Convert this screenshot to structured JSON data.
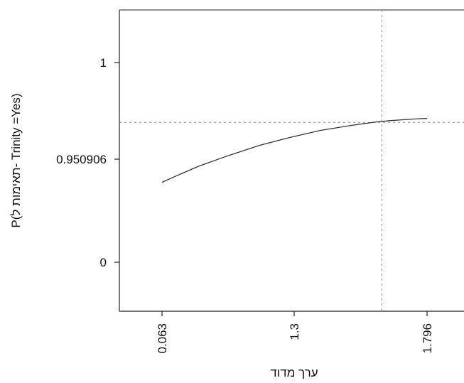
{
  "chart_data": {
    "type": "line",
    "title": "",
    "xlabel": "ערך מדוד",
    "ylabel": "P(תאימות ל- Trinity =Yes)",
    "x_ticks": [
      "0.063",
      "1.3",
      "1.796"
    ],
    "y_ticks": [
      "0",
      "0.950906",
      "1"
    ],
    "series": [
      {
        "x": [
          0.063,
          0.15,
          0.3,
          0.5,
          0.7,
          0.9,
          1.1,
          1.3,
          1.45,
          1.55,
          1.65,
          1.75,
          1.796
        ],
        "y": [
          0.4,
          0.43,
          0.48,
          0.535,
          0.585,
          0.625,
          0.66,
          0.685,
          0.701,
          0.709,
          0.714,
          0.719,
          0.72
        ]
      }
    ],
    "reference_lines": {
      "vertical_x": 1.5,
      "horizontal_y": 0.7
    },
    "ylim": [
      0,
      1
    ],
    "grid": false,
    "legend": "none"
  }
}
